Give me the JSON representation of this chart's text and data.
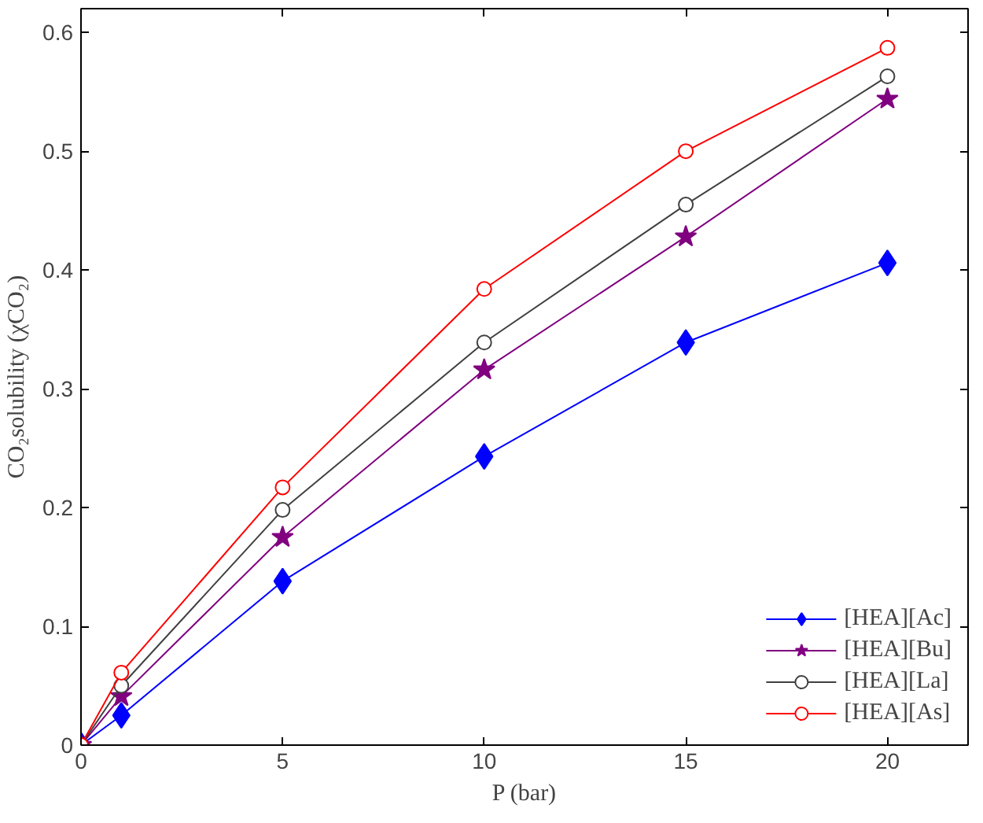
{
  "chart_data": {
    "type": "line",
    "xlabel": "P (bar)",
    "ylabel": "CO₂solubility (χCO₂)",
    "x": [
      0,
      1,
      5,
      10,
      15,
      20
    ],
    "series": [
      {
        "name": "[HEA][Ac]",
        "color": "#0000ff",
        "marker": "diamond",
        "values": [
          0,
          0.025,
          0.138,
          0.243,
          0.339,
          0.406
        ]
      },
      {
        "name": "[HEA][Bu]",
        "color": "#800080",
        "marker": "star",
        "values": [
          0,
          0.041,
          0.175,
          0.316,
          0.428,
          0.544
        ]
      },
      {
        "name": "[HEA][La]",
        "color": "#404040",
        "marker": "circle",
        "values": [
          0,
          0.05,
          0.198,
          0.339,
          0.455,
          0.563
        ]
      },
      {
        "name": "[HEA][As]",
        "color": "#ff0000",
        "marker": "circle",
        "values": [
          0,
          0.061,
          0.217,
          0.384,
          0.5,
          0.587
        ]
      }
    ],
    "xlim": [
      0,
      22
    ],
    "xticks": [
      0,
      5,
      10,
      15,
      20
    ],
    "ylim": [
      0,
      0.62
    ],
    "yticks": [
      0,
      0.1,
      0.2,
      0.3,
      0.4,
      0.5,
      0.6
    ],
    "legend": "bottom right",
    "grid": false,
    "line_style": "solid"
  }
}
